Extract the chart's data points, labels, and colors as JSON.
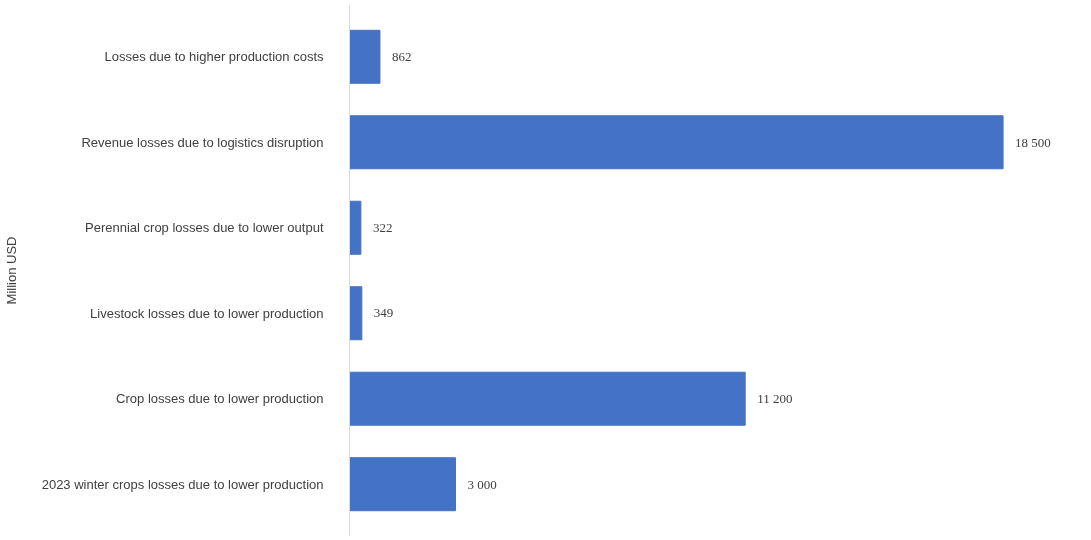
{
  "chart_data": {
    "type": "bar",
    "orientation": "horizontal",
    "ylabel": "Million USD",
    "categories": [
      "Losses due to higher production costs",
      "Revenue losses due to logistics disruption",
      "Perennial crop losses due to lower output",
      "Livestock losses due to lower production",
      "Crop losses due to lower production",
      "2023 winter crops losses due to lower production"
    ],
    "values": [
      862,
      18500,
      322,
      349,
      11200,
      3000
    ],
    "value_labels": [
      "862",
      "18 500",
      "322",
      "349",
      "11 200",
      "3 000"
    ],
    "color": "#4472c4",
    "grid": false
  }
}
